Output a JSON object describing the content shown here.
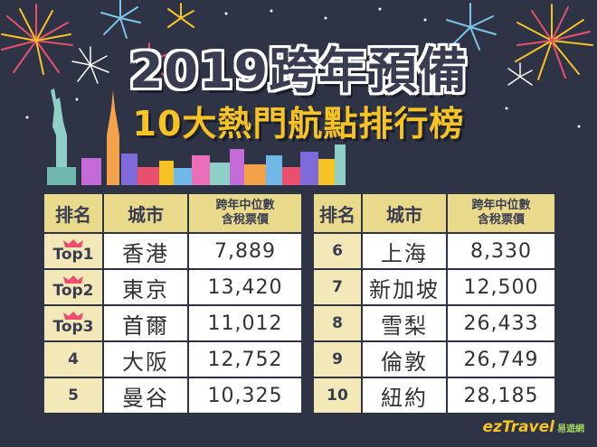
{
  "title": "2019跨年預備",
  "subtitle": "10大熱門航點排行榜",
  "colors": {
    "background": "#2e3346",
    "header_cell": "#e9d98a",
    "rank_cell": "#f3e9b8",
    "title_yellow": "#f6c325",
    "crown": "#e8506e"
  },
  "left_table": {
    "headers": {
      "rank": "排名",
      "city": "城市",
      "price_line1": "跨年中位數",
      "price_line2": "含稅票價"
    },
    "rows": [
      {
        "rank": "Top1",
        "city": "香港",
        "price": "7,889",
        "crown": true
      },
      {
        "rank": "Top2",
        "city": "東京",
        "price": "13,420",
        "crown": true
      },
      {
        "rank": "Top3",
        "city": "首爾",
        "price": "11,012",
        "crown": true
      },
      {
        "rank": "4",
        "city": "大阪",
        "price": "12,752",
        "crown": false
      },
      {
        "rank": "5",
        "city": "曼谷",
        "price": "10,325",
        "crown": false
      }
    ]
  },
  "right_table": {
    "headers": {
      "rank": "排名",
      "city": "城市",
      "price_line1": "跨年中位數",
      "price_line2": "含稅票價"
    },
    "rows": [
      {
        "rank": "6",
        "city": "上海",
        "price": "8,330"
      },
      {
        "rank": "7",
        "city": "新加坡",
        "price": "12,500"
      },
      {
        "rank": "8",
        "city": "雪梨",
        "price": "26,433"
      },
      {
        "rank": "9",
        "city": "倫敦",
        "price": "26,749"
      },
      {
        "rank": "10",
        "city": "紐約",
        "price": "28,185"
      }
    ]
  },
  "brand": {
    "logo": "ezTravel",
    "name": "易遊網"
  }
}
